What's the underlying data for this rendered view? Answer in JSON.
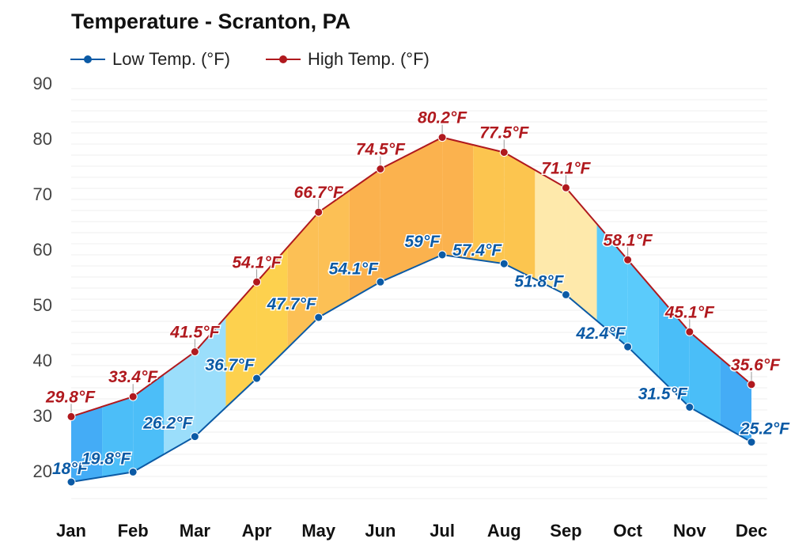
{
  "chart_data": {
    "type": "area",
    "title": "Temperature - Scranton, PA",
    "categories": [
      "Jan",
      "Feb",
      "Mar",
      "Apr",
      "May",
      "Jun",
      "Jul",
      "Aug",
      "Sep",
      "Oct",
      "Nov",
      "Dec"
    ],
    "series": [
      {
        "name": "Low Temp. (°F)",
        "color": "#0b5aa5",
        "values": [
          18,
          19.8,
          26.2,
          36.7,
          47.7,
          54.1,
          59,
          57.4,
          51.8,
          42.4,
          31.5,
          25.2
        ],
        "labels": [
          "18°F",
          "19.8°F",
          "26.2°F",
          "36.7°F",
          "47.7°F",
          "54.1°F",
          "59°F",
          "57.4°F",
          "51.8°F",
          "42.4°F",
          "31.5°F",
          "25.2°F"
        ]
      },
      {
        "name": "High Temp. (°F)",
        "color": "#b0191e",
        "values": [
          29.8,
          33.4,
          41.5,
          54.1,
          66.7,
          74.5,
          80.2,
          77.5,
          71.1,
          58.1,
          45.1,
          35.6
        ],
        "labels": [
          "29.8°F",
          "33.4°F",
          "41.5°F",
          "54.1°F",
          "66.7°F",
          "74.5°F",
          "80.2°F",
          "77.5°F",
          "71.1°F",
          "58.1°F",
          "45.1°F",
          "35.6°F"
        ]
      }
    ],
    "yticks": [
      "20",
      "30",
      "40",
      "50",
      "60",
      "70",
      "80",
      "90"
    ],
    "ylim": [
      15,
      90
    ],
    "grid": true,
    "legend": "top-left",
    "band_colors": [
      "#3aa8f5",
      "#42baf8",
      "#96dcfb",
      "#fdcf45",
      "#fcbd4c",
      "#fbae45",
      "#fbae45",
      "#fcc246",
      "#fee8a6",
      "#52c8fb",
      "#40bbf8",
      "#3aa8f5"
    ]
  }
}
